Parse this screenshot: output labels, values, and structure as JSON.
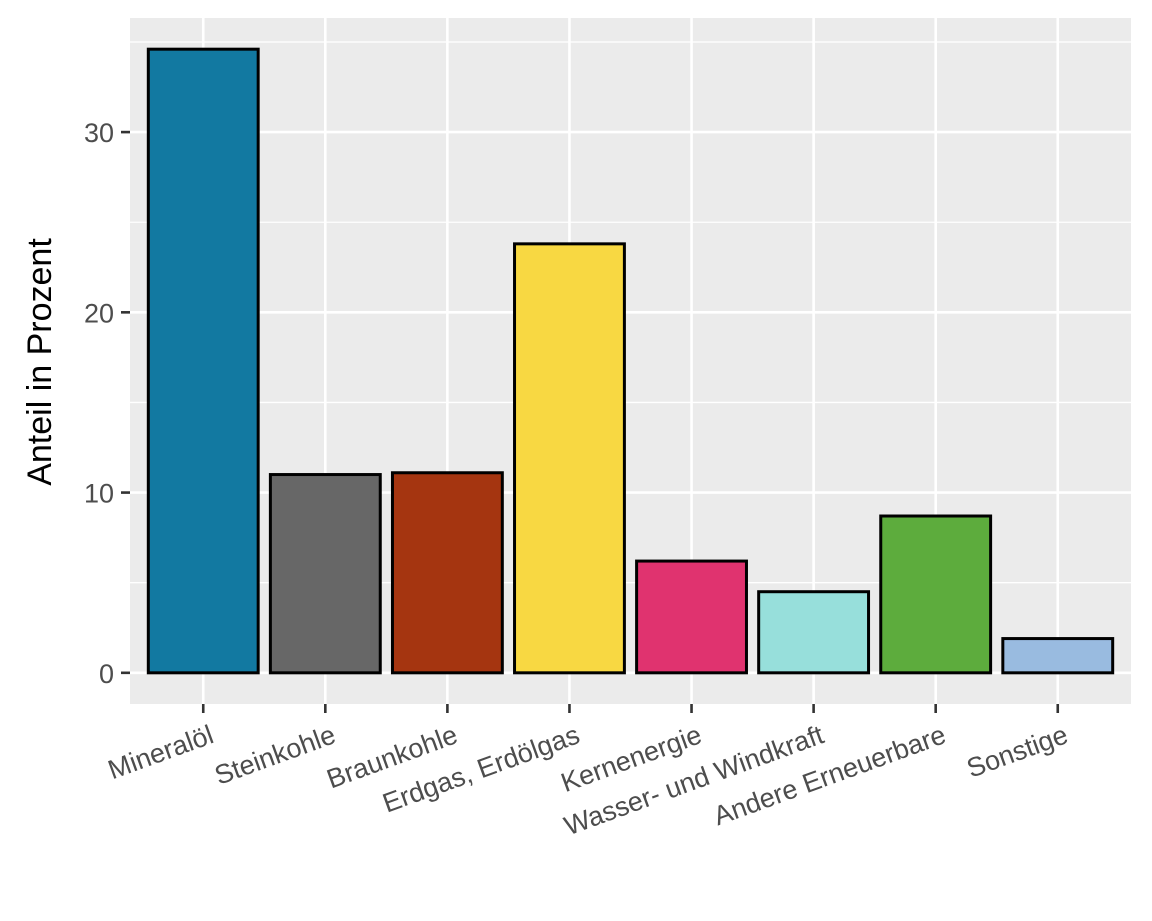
{
  "chart_data": {
    "type": "bar",
    "title": "",
    "xlabel": "",
    "ylabel": "Anteil in Prozent",
    "categories": [
      "Mineralöl",
      "Steinkohle",
      "Braunkohle",
      "Erdgas, Erdölgas",
      "Kernenergie",
      "Wasser- und Windkraft",
      "Andere Erneuerbare",
      "Sonstige"
    ],
    "values": [
      34.6,
      11.0,
      11.1,
      23.8,
      6.2,
      4.5,
      8.7,
      1.9
    ],
    "colors": [
      "#1279a1",
      "#676767",
      "#a53510",
      "#f8d842",
      "#e0336f",
      "#97dfdb",
      "#5dac3d",
      "#99bbe0"
    ],
    "ylim": [
      -1.73,
      36.33
    ],
    "yticks": [
      0,
      10,
      20,
      30
    ],
    "grid": true,
    "legend": "none",
    "panel_background": "#ebebeb",
    "bar_outline": "#000000"
  }
}
